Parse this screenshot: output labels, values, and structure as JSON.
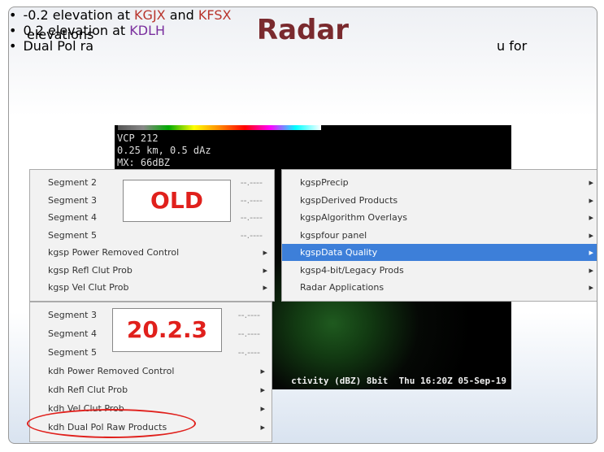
{
  "slide": {
    "title": "Radar",
    "bullets": [
      [
        {
          "text": "-0.2 elevation at "
        },
        {
          "text": "KGJX",
          "color": "#b8342c"
        },
        {
          "text": " and "
        },
        {
          "text": "KFSX",
          "color": "#b8342c"
        }
      ],
      [
        {
          "text": "0.2 elevation at "
        },
        {
          "text": "KDLH",
          "color": "#7a2f9e"
        }
      ],
      [
        {
          "text": "Dual Pol ra"
        },
        {
          "text": "u for"
        },
        {
          "text": "elevations"
        }
      ]
    ]
  },
  "radar": {
    "info": [
      "VCP 212",
      "0.25 km, 0.5 dAz",
      "MX: 66dBZ"
    ],
    "footer": "ctivity (dBZ) 8bit  Thu 16:20Z 05-Sep-19"
  },
  "old_menu": {
    "label": "OLD",
    "items": [
      {
        "text": "Segment 2",
        "value": "--.----"
      },
      {
        "text": "Segment 3",
        "value": "--.----"
      },
      {
        "text": "Segment 4",
        "value": "--.----"
      },
      {
        "text": "Segment 5",
        "value": "--.----"
      },
      {
        "text": "kgsp Power Removed Control",
        "arrow": "▸"
      },
      {
        "text": "kgsp Refl Clut Prob",
        "arrow": "▸"
      },
      {
        "text": "kgsp Vel Clut Prob",
        "arrow": "▸"
      }
    ],
    "submenu": [
      {
        "text": "kgspPrecip",
        "arrow": "▸"
      },
      {
        "text": "kgspDerived Products",
        "arrow": "▸"
      },
      {
        "text": "kgspAlgorithm Overlays",
        "arrow": "▸"
      },
      {
        "text": "kgspfour panel",
        "arrow": "▸"
      },
      {
        "text": "kgspData Quality",
        "arrow": "▸",
        "selected": true
      },
      {
        "text": "kgsp4-bit/Legacy Prods",
        "arrow": "▸"
      },
      {
        "text": "Radar Applications",
        "arrow": "▸"
      }
    ]
  },
  "new_menu": {
    "label": "20.2.3",
    "items": [
      {
        "text": "Segment 3",
        "value": "--.----"
      },
      {
        "text": "Segment 4",
        "value": "--.----"
      },
      {
        "text": "Segment 5",
        "value": "--.----"
      },
      {
        "text": "kdh Power Removed Control",
        "arrow": "▸"
      },
      {
        "text": "kdh Refl Clut Prob",
        "arrow": "▸"
      },
      {
        "text": "kdh Vel Clut Prob",
        "arrow": "▸"
      },
      {
        "text": "kdh Dual Pol Raw Products",
        "arrow": "▸",
        "circled": true
      }
    ]
  }
}
